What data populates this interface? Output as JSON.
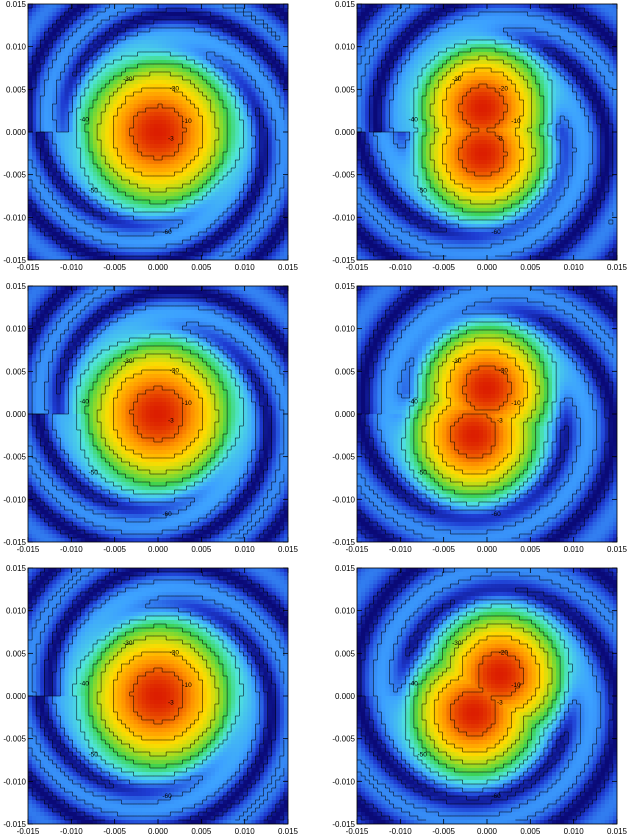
{
  "chart_data": [
    {
      "type": "heatmap",
      "panel": "row1-left",
      "xlim": [
        -0.015,
        0.015
      ],
      "ylim": [
        -0.015,
        0.015
      ],
      "x_ticks": [
        "-0.015",
        "-0.010",
        "-0.005",
        "0.000",
        "0.005",
        "0.010",
        "0.015"
      ],
      "y_ticks": [
        "-0.015",
        "-0.010",
        "-0.005",
        "0.000",
        "0.005",
        "0.010",
        "0.015"
      ],
      "lobes": [
        [
          0.0,
          0.0
        ]
      ],
      "lobe_width": 0.0042,
      "ring_period": 0.0048,
      "swirl": 0.9,
      "contour_levels": [
        "-3",
        "-10",
        "-20",
        "-30",
        "-40",
        "-50",
        "-60"
      ],
      "grid": false
    },
    {
      "type": "heatmap",
      "panel": "row1-right",
      "xlim": [
        -0.015,
        0.015
      ],
      "ylim": [
        -0.015,
        0.015
      ],
      "x_ticks": [
        "-0.015",
        "-0.010",
        "-0.005",
        "0.000",
        "0.005",
        "0.010",
        "0.015"
      ],
      "y_ticks": [
        "-0.015",
        "-0.010",
        "-0.005",
        "0.000",
        "0.005",
        "0.010",
        "0.015"
      ],
      "lobes": [
        [
          -0.0005,
          0.0028
        ],
        [
          -0.0005,
          -0.0025
        ]
      ],
      "lobe_width": 0.0036,
      "ring_period": 0.0055,
      "swirl": 0.8,
      "contour_levels": [
        "-3",
        "-10",
        "-20",
        "-30",
        "-40",
        "-50",
        "-60"
      ],
      "grid": false
    },
    {
      "type": "heatmap",
      "panel": "row2-left",
      "xlim": [
        -0.015,
        0.015
      ],
      "ylim": [
        -0.015,
        0.015
      ],
      "x_ticks": [
        "-0.015",
        "-0.010",
        "-0.005",
        "0.000",
        "0.005",
        "0.010",
        "0.015"
      ],
      "y_ticks": [
        "-0.015",
        "-0.010",
        "-0.005",
        "0.000",
        "0.005",
        "0.010",
        "0.015"
      ],
      "lobes": [
        [
          0.0,
          0.0
        ]
      ],
      "lobe_width": 0.0042,
      "ring_period": 0.005,
      "swirl": 0.85,
      "contour_levels": [
        "-3",
        "-10",
        "-20",
        "-30",
        "-40",
        "-50",
        "-60"
      ],
      "grid": false
    },
    {
      "type": "heatmap",
      "panel": "row2-right",
      "xlim": [
        -0.015,
        0.015
      ],
      "ylim": [
        -0.015,
        0.015
      ],
      "x_ticks": [
        "-0.015",
        "-0.010",
        "-0.005",
        "0.000",
        "0.005",
        "0.010",
        "0.015"
      ],
      "y_ticks": [
        "-0.015",
        "-0.010",
        "-0.005",
        "0.000",
        "0.005",
        "0.010",
        "0.015"
      ],
      "lobes": [
        [
          0.0,
          0.003
        ],
        [
          -0.0015,
          -0.0025
        ]
      ],
      "lobe_width": 0.0036,
      "ring_period": 0.0058,
      "swirl": 0.7,
      "contour_levels": [
        "-3",
        "-10",
        "-20",
        "-30",
        "-40",
        "-50",
        "-60"
      ],
      "grid": false
    },
    {
      "type": "heatmap",
      "panel": "row3-left",
      "xlim": [
        -0.015,
        0.015
      ],
      "ylim": [
        -0.015,
        0.015
      ],
      "x_ticks": [
        "-0.015",
        "-0.010",
        "-0.005",
        "0.000",
        "0.005",
        "0.010",
        "0.015"
      ],
      "y_ticks": [
        "-0.015",
        "-0.010",
        "-0.005",
        "0.000",
        "0.005",
        "0.010",
        "0.015"
      ],
      "lobes": [
        [
          0.0,
          0.0
        ]
      ],
      "lobe_width": 0.0042,
      "ring_period": 0.0052,
      "swirl": 0.75,
      "contour_levels": [
        "-3",
        "-10",
        "-20",
        "-30",
        "-40",
        "-50",
        "-60"
      ],
      "grid": false
    },
    {
      "type": "heatmap",
      "panel": "row3-right",
      "xlim": [
        -0.015,
        0.015
      ],
      "ylim": [
        -0.015,
        0.015
      ],
      "x_ticks": [
        "-0.015",
        "-0.010",
        "-0.005",
        "0.000",
        "0.005",
        "0.010",
        "0.015"
      ],
      "y_ticks": [
        "-0.015",
        "-0.010",
        "-0.005",
        "0.000",
        "0.005",
        "0.010",
        "0.015"
      ],
      "lobes": [
        [
          0.0015,
          0.0025
        ],
        [
          -0.0015,
          -0.002
        ]
      ],
      "lobe_width": 0.0036,
      "ring_period": 0.006,
      "swirl": 0.65,
      "contour_levels": [
        "-3",
        "-10",
        "-20",
        "-30",
        "-40",
        "-50",
        "-60"
      ],
      "grid": false
    }
  ],
  "colors": {
    "colormap": [
      "#0a0a78",
      "#1e3cd2",
      "#3ca0ff",
      "#50e6dc",
      "#3cd250",
      "#aadc1e",
      "#ffdc00",
      "#ff9600",
      "#dc1e00"
    ],
    "contour_line": "#000000",
    "axis": "#000000"
  }
}
